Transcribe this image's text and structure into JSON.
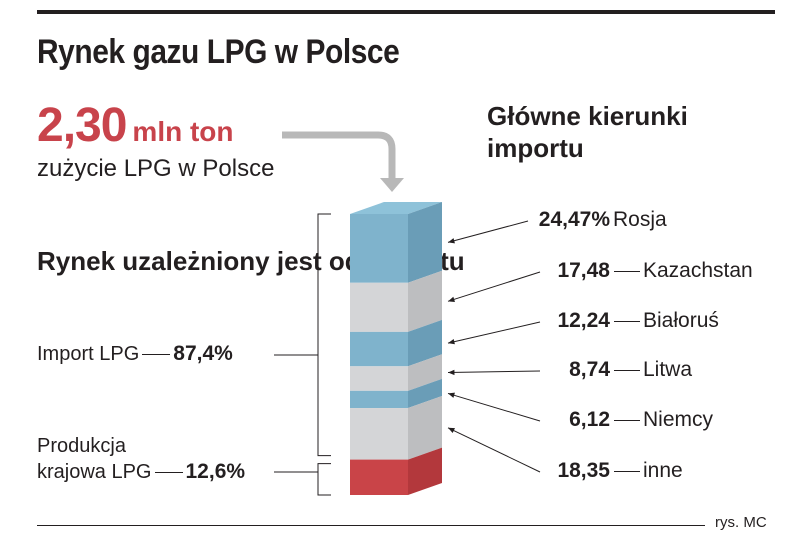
{
  "title": "Rynek gazu LPG w Polsce",
  "total": {
    "value": "2,30",
    "unit": "mln ton",
    "caption": "zużycie LPG w Polsce"
  },
  "left": {
    "heading": "Rynek uzależniony jest od importu",
    "import_label": "Import LPG",
    "import_value": "87,4%",
    "production_label_1": "Produkcja",
    "production_label_2": "krajowa LPG",
    "production_value": "12,6%"
  },
  "right": {
    "heading": "Główne kierunki importu"
  },
  "credit": "rys. MC",
  "colors": {
    "blue_front": "#7fb3cc",
    "blue_side": "#6a9db7",
    "blue_top": "#8ec2d9",
    "gray_front": "#d4d5d7",
    "gray_side": "#bdbec0",
    "red_front": "#c94448",
    "red_side": "#b3383c",
    "accent": "#c8434b"
  },
  "chart_data": {
    "type": "bar",
    "title": "Główne kierunki importu",
    "categories": [
      "Rosja",
      "Kazachstan",
      "Białoruś",
      "Litwa",
      "Niemcy",
      "inne"
    ],
    "labels": [
      "24,47%",
      "17,48",
      "12,24",
      "8,74",
      "6,12",
      "18,35"
    ],
    "values": [
      24.47,
      17.48,
      12.24,
      8.74,
      6.12,
      18.35
    ],
    "import_share": 87.4,
    "production_share": 12.6,
    "production_color": "red",
    "stack_colors": [
      "blue",
      "gray",
      "blue",
      "gray",
      "blue",
      "gray"
    ]
  }
}
